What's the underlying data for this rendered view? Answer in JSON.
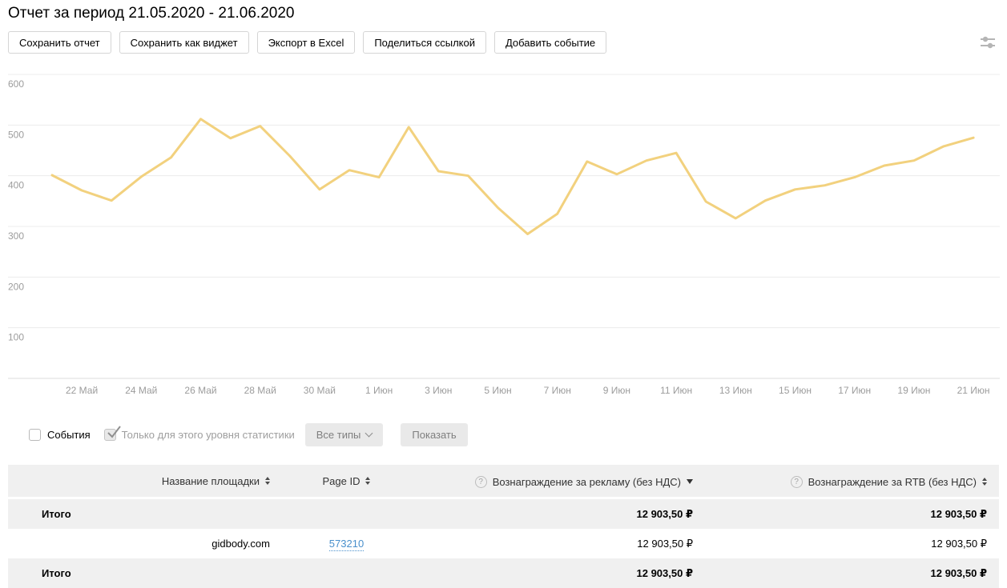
{
  "header": {
    "title": "Отчет за период 21.05.2020 - 21.06.2020"
  },
  "toolbar": {
    "buttons": [
      {
        "label": "Сохранить отчет"
      },
      {
        "label": "Сохранить как виджет"
      },
      {
        "label": "Экспорт в Excel"
      },
      {
        "label": "Поделиться ссылкой"
      },
      {
        "label": "Добавить событие"
      }
    ],
    "settings_icon": "sliders-icon"
  },
  "chart_data": {
    "type": "line",
    "title": "",
    "xlabel": "",
    "ylabel": "",
    "x": [
      "21 Май",
      "22 Май",
      "23 Май",
      "24 Май",
      "25 Май",
      "26 Май",
      "27 Май",
      "28 Май",
      "29 Май",
      "30 Май",
      "31 Май",
      "1 Июн",
      "2 Июн",
      "3 Июн",
      "4 Июн",
      "5 Июн",
      "6 Июн",
      "7 Июн",
      "8 Июн",
      "9 Июн",
      "10 Июн",
      "11 Июн",
      "12 Июн",
      "13 Июн",
      "14 Июн",
      "15 Июн",
      "16 Июн",
      "17 Июн",
      "18 Июн",
      "19 Июн",
      "20 Июн",
      "21 Июн"
    ],
    "values": [
      401,
      371,
      351,
      398,
      436,
      512,
      474,
      498,
      439,
      373,
      411,
      397,
      496,
      409,
      400,
      337,
      285,
      325,
      428,
      403,
      430,
      445,
      349,
      316,
      351,
      373,
      381,
      397,
      420,
      430,
      458,
      475
    ],
    "visible_x_ticks": [
      "22 Май",
      "24 Май",
      "26 Май",
      "28 Май",
      "30 Май",
      "1 Июн",
      "3 Июн",
      "5 Июн",
      "7 Июн",
      "9 Июн",
      "11 Июн",
      "13 Июн",
      "15 Июн",
      "17 Июн",
      "19 Июн",
      "21 Июн"
    ],
    "yticks": [
      100,
      200,
      300,
      400,
      500,
      600
    ],
    "ylim": [
      0,
      615
    ],
    "grid": true,
    "legend": "none",
    "line_color": "#f2d17e"
  },
  "events_row": {
    "events_label": "События",
    "events_checked": false,
    "only_level_label": "Только для этого уровня статистики",
    "only_level_checked": true,
    "type_filter_label": "Все типы",
    "show_button_label": "Показать"
  },
  "table": {
    "columns": [
      {
        "label": "Название площадки",
        "sort": "both",
        "help": false
      },
      {
        "label": "Page ID",
        "sort": "both",
        "help": false
      },
      {
        "label": "Вознаграждение за рекламу (без НДС)",
        "sort": "desc",
        "help": true
      },
      {
        "label": "Вознаграждение за RTB (без НДС)",
        "sort": "both",
        "help": true
      }
    ],
    "rows": [
      {
        "type": "total",
        "name": "Итого",
        "page_id": "",
        "ad_revenue": "12 903,50 ₽",
        "rtb_revenue": "12 903,50 ₽"
      },
      {
        "type": "site",
        "name": "gidbody.com",
        "page_id": "573210",
        "ad_revenue": "12 903,50 ₽",
        "rtb_revenue": "12 903,50 ₽"
      },
      {
        "type": "total",
        "name": "Итого",
        "page_id": "",
        "ad_revenue": "12 903,50 ₽",
        "rtb_revenue": "12 903,50 ₽"
      }
    ]
  },
  "icons": {
    "help_glyph": "?"
  },
  "colors": {
    "line": "#f2d17e",
    "link": "#4a90cc",
    "muted_text": "#9e9e9e",
    "table_row_bg": "#f0f0f0"
  }
}
